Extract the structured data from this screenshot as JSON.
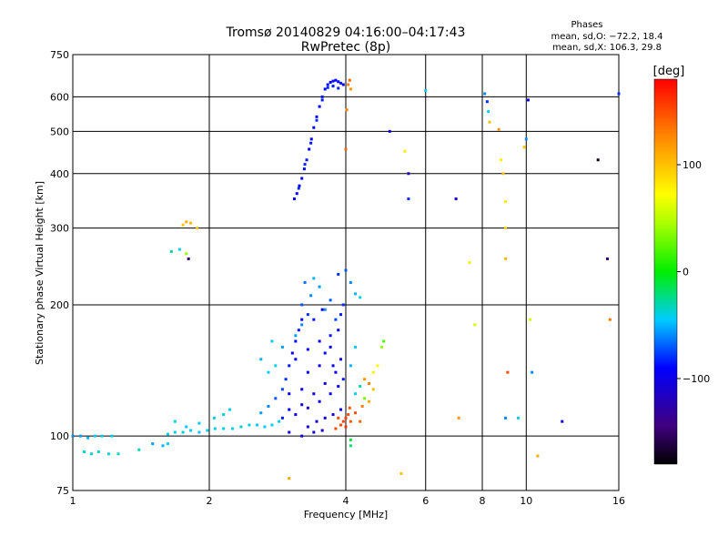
{
  "header": {
    "title": "Tromsø 20140829 04:16:00–04:17:43",
    "subtitle": "RwPretec (8p)",
    "stats_title": "Phases",
    "stats_o": "mean, sd,O: −72.2, 18.4",
    "stats_x": "mean, sd,X: 106.3, 29.8"
  },
  "colorbar": {
    "label": "[deg]",
    "ticks": [
      {
        "value": 100,
        "label": "100"
      },
      {
        "value": 0,
        "label": "0"
      },
      {
        "value": -100,
        "label": "−100"
      }
    ],
    "range": [
      -180,
      180
    ]
  },
  "chart_data": {
    "type": "scatter",
    "title": "Tromsø 20140829 04:16:00–04:17:43",
    "subtitle": "RwPretec (8p)",
    "xlabel": "Frequency [MHz]",
    "ylabel": "Stationary phase Virtual Height [km]",
    "x_scale": "log",
    "y_scale": "log",
    "xlim": [
      1,
      16
    ],
    "ylim": [
      75,
      750
    ],
    "x_ticks": [
      {
        "value": 1,
        "label": "1"
      },
      {
        "value": 2,
        "label": "2"
      },
      {
        "value": 4,
        "label": "4"
      },
      {
        "value": 6,
        "label": "6"
      },
      {
        "value": 8,
        "label": "8"
      },
      {
        "value": 10,
        "label": "10"
      },
      {
        "value": 16,
        "label": "16"
      }
    ],
    "y_ticks": [
      {
        "value": 75,
        "label": "75"
      },
      {
        "value": 100,
        "label": "100"
      },
      {
        "value": 200,
        "label": "200"
      },
      {
        "value": 300,
        "label": "300"
      },
      {
        "value": 400,
        "label": "400"
      },
      {
        "value": 500,
        "label": "500"
      },
      {
        "value": 600,
        "label": "600"
      },
      {
        "value": 750,
        "label": "750"
      }
    ],
    "x_grid": [
      2,
      4,
      6,
      8,
      10
    ],
    "y_grid": [
      100,
      200,
      300,
      400,
      500,
      600
    ],
    "color_scale": {
      "variable": "phase",
      "unit": "deg",
      "min": -180,
      "max": 180
    },
    "points": [
      [
        1.0,
        100,
        -60
      ],
      [
        1.04,
        100,
        -55
      ],
      [
        1.08,
        99,
        -50
      ],
      [
        1.12,
        100,
        -45
      ],
      [
        1.16,
        100,
        -40
      ],
      [
        1.22,
        100,
        -42
      ],
      [
        1.06,
        92,
        -40
      ],
      [
        1.1,
        91,
        -38
      ],
      [
        1.14,
        92,
        -36
      ],
      [
        1.2,
        91,
        -40
      ],
      [
        1.26,
        91,
        -35
      ],
      [
        1.4,
        93,
        -30
      ],
      [
        1.5,
        96,
        -55
      ],
      [
        1.58,
        95,
        -50
      ],
      [
        1.62,
        96,
        -45
      ],
      [
        1.62,
        101,
        -45
      ],
      [
        1.68,
        102,
        -40
      ],
      [
        1.75,
        102,
        -38
      ],
      [
        1.82,
        103,
        -42
      ],
      [
        1.9,
        102,
        -45
      ],
      [
        1.98,
        103,
        -40
      ],
      [
        2.06,
        104,
        -38
      ],
      [
        2.15,
        104,
        -42
      ],
      [
        2.25,
        104,
        -40
      ],
      [
        2.35,
        105,
        -38
      ],
      [
        2.45,
        106,
        -40
      ],
      [
        2.55,
        106,
        -45
      ],
      [
        2.65,
        105,
        -42
      ],
      [
        2.75,
        106,
        -40
      ],
      [
        2.85,
        108,
        -45
      ],
      [
        2.05,
        110,
        -40
      ],
      [
        2.15,
        112,
        -38
      ],
      [
        2.22,
        115,
        -42
      ],
      [
        1.9,
        107,
        -40
      ],
      [
        1.78,
        105,
        -45
      ],
      [
        1.68,
        108,
        -40
      ],
      [
        2.6,
        113,
        -55
      ],
      [
        2.7,
        117,
        -60
      ],
      [
        2.8,
        122,
        -70
      ],
      [
        2.9,
        128,
        -75
      ],
      [
        2.95,
        135,
        -80
      ],
      [
        3.0,
        145,
        -85
      ],
      [
        3.05,
        155,
        -90
      ],
      [
        3.1,
        165,
        -88
      ],
      [
        3.15,
        175,
        -85
      ],
      [
        3.2,
        185,
        -90
      ],
      [
        2.9,
        110,
        -85
      ],
      [
        3.0,
        115,
        -95
      ],
      [
        3.1,
        112,
        -100
      ],
      [
        3.2,
        118,
        -105
      ],
      [
        3.3,
        116,
        -110
      ],
      [
        3.0,
        125,
        -95
      ],
      [
        3.2,
        128,
        -100
      ],
      [
        3.4,
        125,
        -105
      ],
      [
        3.3,
        140,
        -95
      ],
      [
        3.5,
        145,
        -100
      ],
      [
        3.1,
        150,
        -90
      ],
      [
        3.3,
        158,
        -95
      ],
      [
        3.5,
        165,
        -100
      ],
      [
        3.6,
        155,
        -90
      ],
      [
        3.7,
        160,
        -95
      ],
      [
        2.8,
        145,
        -40
      ],
      [
        2.7,
        140,
        -45
      ],
      [
        2.6,
        150,
        -50
      ],
      [
        2.9,
        160,
        -55
      ],
      [
        2.75,
        165,
        -45
      ],
      [
        3.1,
        170,
        -55
      ],
      [
        3.2,
        180,
        -60
      ],
      [
        3.3,
        190,
        -80
      ],
      [
        3.4,
        185,
        -85
      ],
      [
        3.55,
        195,
        -90
      ],
      [
        3.2,
        200,
        -70
      ],
      [
        3.35,
        210,
        -60
      ],
      [
        3.5,
        220,
        -55
      ],
      [
        3.4,
        230,
        -50
      ],
      [
        3.25,
        225,
        -65
      ],
      [
        3.3,
        105,
        -105
      ],
      [
        3.45,
        108,
        -110
      ],
      [
        3.6,
        110,
        -100
      ],
      [
        3.75,
        112,
        -105
      ],
      [
        3.9,
        115,
        -95
      ],
      [
        3.5,
        120,
        -100
      ],
      [
        3.7,
        125,
        -90
      ],
      [
        3.85,
        130,
        -95
      ],
      [
        3.95,
        135,
        -85
      ],
      [
        3.8,
        140,
        -90
      ],
      [
        3.6,
        132,
        -100
      ],
      [
        3.75,
        145,
        -95
      ],
      [
        3.9,
        150,
        -100
      ],
      [
        3.7,
        170,
        -85
      ],
      [
        3.85,
        175,
        -90
      ],
      [
        3.9,
        190,
        -85
      ],
      [
        3.95,
        200,
        -80
      ],
      [
        3.8,
        185,
        -75
      ],
      [
        3.7,
        205,
        -70
      ],
      [
        3.6,
        195,
        -60
      ],
      [
        3.4,
        102,
        -100
      ],
      [
        3.2,
        100,
        -100
      ],
      [
        3.0,
        102,
        -105
      ],
      [
        3.55,
        103,
        -110
      ],
      [
        3.8,
        104,
        150
      ],
      [
        3.9,
        106,
        150
      ],
      [
        3.95,
        108,
        155
      ],
      [
        4.0,
        110,
        155
      ],
      [
        4.05,
        112,
        150
      ],
      [
        4.1,
        108,
        145
      ],
      [
        3.85,
        110,
        150
      ],
      [
        4.0,
        105,
        160
      ],
      [
        4.08,
        116,
        145
      ],
      [
        4.2,
        125,
        -40
      ],
      [
        4.3,
        130,
        -30
      ],
      [
        4.4,
        135,
        120
      ],
      [
        4.5,
        132,
        130
      ],
      [
        4.6,
        128,
        100
      ],
      [
        4.4,
        122,
        30
      ],
      [
        4.5,
        120,
        110
      ],
      [
        4.6,
        140,
        80
      ],
      [
        4.7,
        145,
        70
      ],
      [
        4.2,
        113,
        150
      ],
      [
        4.3,
        108,
        140
      ],
      [
        4.35,
        117,
        130
      ],
      [
        4.1,
        145,
        -50
      ],
      [
        4.2,
        160,
        -45
      ],
      [
        4.8,
        160,
        40
      ],
      [
        4.85,
        165,
        20
      ],
      [
        4.1,
        95,
        -20
      ],
      [
        4.1,
        98,
        -10
      ],
      [
        4.0,
        240,
        -70
      ],
      [
        4.1,
        225,
        -60
      ],
      [
        4.2,
        212,
        -50
      ],
      [
        3.85,
        235,
        -80
      ],
      [
        4.3,
        208,
        -40
      ],
      [
        3.08,
        350,
        -90
      ],
      [
        3.12,
        360,
        -92
      ],
      [
        3.16,
        375,
        -95
      ],
      [
        3.2,
        390,
        -90
      ],
      [
        3.24,
        410,
        -88
      ],
      [
        3.28,
        430,
        -85
      ],
      [
        3.32,
        455,
        -90
      ],
      [
        3.36,
        480,
        -92
      ],
      [
        3.4,
        510,
        -90
      ],
      [
        3.45,
        540,
        -88
      ],
      [
        3.5,
        570,
        -90
      ],
      [
        3.55,
        600,
        -85
      ],
      [
        3.6,
        625,
        -90
      ],
      [
        3.65,
        640,
        -88
      ],
      [
        3.7,
        648,
        -90
      ],
      [
        3.75,
        652,
        -85
      ],
      [
        3.8,
        655,
        -88
      ],
      [
        3.85,
        650,
        -90
      ],
      [
        3.9,
        645,
        -85
      ],
      [
        3.95,
        640,
        -90
      ],
      [
        3.15,
        370,
        -80
      ],
      [
        3.25,
        420,
        -82
      ],
      [
        3.35,
        470,
        -85
      ],
      [
        3.45,
        530,
        -80
      ],
      [
        3.55,
        590,
        -85
      ],
      [
        3.65,
        630,
        -80
      ],
      [
        3.75,
        635,
        -85
      ],
      [
        3.85,
        628,
        -82
      ],
      [
        4.05,
        640,
        130
      ],
      [
        4.08,
        655,
        140
      ],
      [
        4.1,
        625,
        120
      ],
      [
        4.02,
        560,
        130
      ],
      [
        4.0,
        455,
        140
      ],
      [
        1.75,
        305,
        100
      ],
      [
        1.78,
        310,
        110
      ],
      [
        1.82,
        308,
        105
      ],
      [
        1.88,
        300,
        95
      ],
      [
        1.65,
        265,
        -30
      ],
      [
        1.72,
        268,
        -40
      ],
      [
        1.78,
        262,
        40
      ],
      [
        1.8,
        255,
        -150
      ],
      [
        5.0,
        500,
        -100
      ],
      [
        5.5,
        400,
        -120
      ],
      [
        5.4,
        450,
        80
      ],
      [
        5.5,
        350,
        -80
      ],
      [
        6.0,
        620,
        -40
      ],
      [
        7.0,
        350,
        -110
      ],
      [
        7.5,
        250,
        80
      ],
      [
        7.7,
        180,
        60
      ],
      [
        8.1,
        610,
        -60
      ],
      [
        8.2,
        585,
        -80
      ],
      [
        8.25,
        555,
        -40
      ],
      [
        8.3,
        525,
        100
      ],
      [
        8.7,
        505,
        120
      ],
      [
        8.8,
        430,
        80
      ],
      [
        8.9,
        400,
        100
      ],
      [
        9.0,
        345,
        80
      ],
      [
        9.0,
        300,
        90
      ],
      [
        9.0,
        255,
        100
      ],
      [
        9.1,
        140,
        150
      ],
      [
        9.0,
        110,
        -60
      ],
      [
        10.1,
        590,
        -100
      ],
      [
        10.0,
        480,
        -60
      ],
      [
        9.9,
        460,
        100
      ],
      [
        10.2,
        185,
        60
      ],
      [
        10.3,
        140,
        -60
      ],
      [
        9.6,
        110,
        -40
      ],
      [
        12.0,
        108,
        -100
      ],
      [
        14.4,
        430,
        -170
      ],
      [
        15.1,
        255,
        -150
      ],
      [
        15.3,
        185,
        130
      ],
      [
        16.0,
        610,
        -80
      ],
      [
        10.6,
        90,
        110
      ],
      [
        7.1,
        110,
        120
      ],
      [
        5.3,
        82,
        100
      ],
      [
        3.0,
        80,
        110
      ]
    ]
  }
}
